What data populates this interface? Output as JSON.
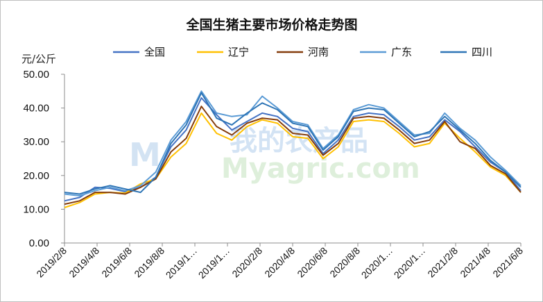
{
  "chart_data": {
    "type": "line",
    "title": "全国生猪主要市场价格走势图",
    "ylabel": "元/公斤",
    "ylim": [
      0,
      50
    ],
    "yticks": [
      "0.00",
      "10.00",
      "20.00",
      "30.00",
      "40.00",
      "50.00"
    ],
    "xticks": [
      "2019/2/8",
      "2019/4/8",
      "2019/6/8",
      "2019/8/8",
      "2019/1…",
      "2019/1…",
      "2020/2/8",
      "2020/4/8",
      "2020/6/8",
      "2020/8/8",
      "2020/1…",
      "2020/1…",
      "2021/2/8",
      "2021/4/8",
      "2021/6/8"
    ],
    "grid": false,
    "legend_position": "top",
    "watermark": {
      "logo": "M",
      "text_cn": "我的农产品",
      "text_en": "Myagric.com"
    },
    "x": [
      "2019/2/8",
      "2019/3/8",
      "2019/4/8",
      "2019/5/8",
      "2019/6/8",
      "2019/7/8",
      "2019/8/8",
      "2019/9/8",
      "2019/10/8",
      "2019/11/1",
      "2019/11/8",
      "2019/12/8",
      "2020/1/8",
      "2020/2/8",
      "2020/3/8",
      "2020/4/8",
      "2020/5/8",
      "2020/6/1",
      "2020/6/8",
      "2020/7/8",
      "2020/8/8",
      "2020/9/8",
      "2020/10/8",
      "2020/11/8",
      "2020/12/8",
      "2021/1/8",
      "2021/2/8",
      "2021/3/8",
      "2021/4/8",
      "2021/5/8",
      "2021/6/8"
    ],
    "series": [
      {
        "name": "全国",
        "color": "#4472c4",
        "values": [
          12.5,
          13.5,
          16.5,
          16.2,
          15.2,
          16.5,
          19.5,
          28.5,
          33.5,
          43.0,
          38.0,
          33.5,
          36.0,
          38.5,
          37.5,
          34.0,
          33.0,
          26.5,
          30.5,
          37.5,
          38.5,
          38.0,
          34.5,
          30.5,
          31.5,
          36.5,
          33.0,
          28.5,
          24.0,
          21.0,
          15.5
        ]
      },
      {
        "name": "辽宁",
        "color": "#ffc000",
        "values": [
          10.5,
          12.0,
          14.5,
          15.0,
          14.8,
          17.5,
          19.0,
          25.5,
          29.5,
          38.5,
          32.5,
          30.5,
          34.5,
          36.5,
          35.5,
          31.5,
          31.0,
          25.0,
          28.5,
          36.0,
          36.5,
          36.0,
          32.5,
          28.5,
          29.5,
          35.5,
          31.0,
          27.0,
          22.5,
          20.0,
          15.0
        ]
      },
      {
        "name": "河南",
        "color": "#843c0c",
        "values": [
          11.5,
          12.5,
          15.0,
          15.0,
          14.5,
          16.5,
          19.0,
          27.0,
          31.0,
          40.5,
          34.5,
          32.0,
          35.5,
          37.0,
          36.5,
          32.5,
          32.0,
          26.0,
          29.5,
          37.0,
          37.5,
          37.0,
          33.5,
          29.5,
          30.5,
          36.0,
          30.0,
          28.0,
          23.0,
          20.5,
          15.0
        ]
      },
      {
        "name": "广东",
        "color": "#5b9bd5",
        "values": [
          14.5,
          14.0,
          15.5,
          16.5,
          15.5,
          17.0,
          21.0,
          30.5,
          36.0,
          45.0,
          38.5,
          37.5,
          38.0,
          43.5,
          40.0,
          36.0,
          35.0,
          28.0,
          32.0,
          39.5,
          41.0,
          40.0,
          36.0,
          32.0,
          32.5,
          38.5,
          34.0,
          30.5,
          25.5,
          21.5,
          17.0
        ]
      },
      {
        "name": "四川",
        "color": "#2e75b6",
        "values": [
          15.0,
          14.5,
          16.0,
          17.0,
          16.0,
          15.0,
          19.5,
          29.5,
          35.0,
          44.5,
          37.0,
          35.0,
          38.5,
          41.5,
          39.5,
          35.5,
          34.5,
          27.5,
          31.5,
          39.0,
          40.0,
          39.5,
          35.5,
          31.5,
          33.0,
          37.5,
          33.5,
          29.5,
          24.5,
          21.0,
          16.5
        ]
      }
    ]
  }
}
